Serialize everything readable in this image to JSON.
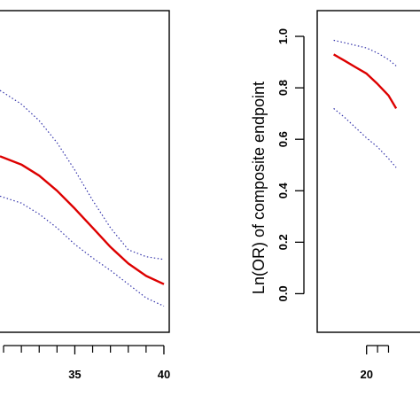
{
  "chart_data": [
    {
      "type": "line",
      "title": "",
      "xlabel": "",
      "ylabel": "",
      "xlim": [
        30.7,
        40.3
      ],
      "ylim": [
        -0.05,
        1.12
      ],
      "x_ticks": [
        35,
        40
      ],
      "x_minor_ticks": [
        31,
        32,
        33,
        34,
        36,
        37,
        38,
        39
      ],
      "grid": false,
      "series": [
        {
          "role": "estimate",
          "color": "#dd0000",
          "style": "solid",
          "x": [
            30.8,
            32.0,
            33.0,
            34.0,
            35.0,
            36.0,
            37.0,
            38.0,
            39.0,
            40.0
          ],
          "y": [
            0.59,
            0.56,
            0.52,
            0.465,
            0.4,
            0.33,
            0.26,
            0.2,
            0.155,
            0.125
          ]
        },
        {
          "role": "upper-ci",
          "color": "#3333aa",
          "style": "dotted",
          "x": [
            30.8,
            32.0,
            33.0,
            34.0,
            35.0,
            36.0,
            37.0,
            38.0,
            39.0,
            40.0
          ],
          "y": [
            0.83,
            0.78,
            0.72,
            0.64,
            0.54,
            0.43,
            0.33,
            0.25,
            0.225,
            0.215
          ]
        },
        {
          "role": "lower-ci",
          "color": "#3333aa",
          "style": "dotted",
          "x": [
            30.8,
            32.0,
            33.0,
            34.0,
            35.0,
            36.0,
            37.0,
            38.0,
            39.0,
            40.0
          ],
          "y": [
            0.445,
            0.42,
            0.38,
            0.33,
            0.27,
            0.22,
            0.175,
            0.125,
            0.075,
            0.045
          ]
        }
      ]
    },
    {
      "type": "line",
      "title": "",
      "xlabel": "",
      "ylabel": "Ln(OR) of composite endpoint",
      "xlim": [
        15.5,
        26
      ],
      "ylim": [
        -0.15,
        1.1
      ],
      "y_ticks": [
        0.0,
        0.2,
        0.4,
        0.6,
        0.8,
        1.0
      ],
      "y_tick_labels": [
        "0.0",
        "0.2",
        "0.4",
        "0.6",
        "0.8",
        "1.0"
      ],
      "x_ticks": [
        20
      ],
      "x_minor_ticks": [
        21,
        22
      ],
      "grid": false,
      "series": [
        {
          "role": "estimate",
          "color": "#dd0000",
          "style": "solid",
          "x": [
            17.0,
            18.0,
            19.0,
            20.0,
            21.0,
            22.0,
            22.7
          ],
          "y": [
            0.93,
            0.905,
            0.88,
            0.855,
            0.815,
            0.77,
            0.72
          ]
        },
        {
          "role": "upper-ci",
          "color": "#3333aa",
          "style": "dotted",
          "x": [
            17.0,
            18.0,
            19.0,
            20.0,
            21.0,
            22.0,
            22.7
          ],
          "y": [
            0.985,
            0.975,
            0.965,
            0.955,
            0.935,
            0.91,
            0.885
          ]
        },
        {
          "role": "lower-ci",
          "color": "#3333aa",
          "style": "dotted",
          "x": [
            17.0,
            18.0,
            19.0,
            20.0,
            21.0,
            22.0,
            22.7
          ],
          "y": [
            0.72,
            0.685,
            0.645,
            0.605,
            0.57,
            0.525,
            0.49
          ]
        }
      ]
    }
  ]
}
